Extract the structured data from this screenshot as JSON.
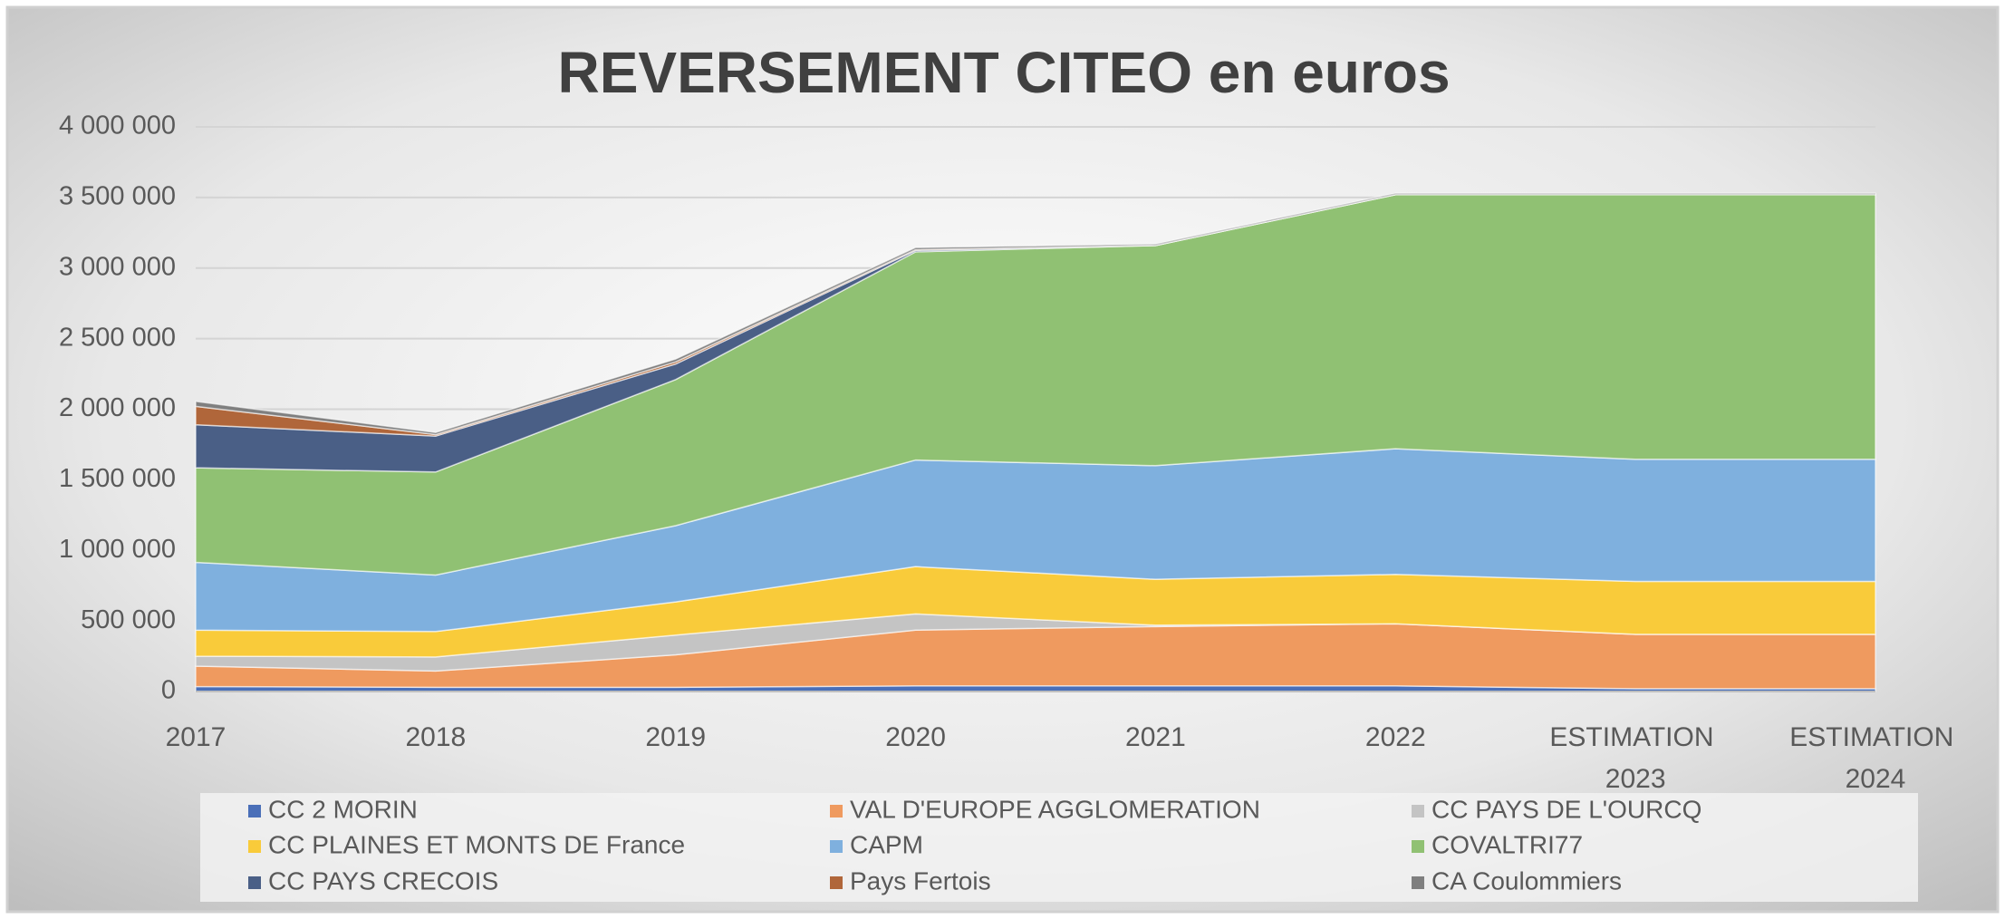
{
  "chart_data": {
    "type": "stacked-area",
    "title": "REVERSEMENT CITEO en euros",
    "categories": [
      "2017",
      "2018",
      "2019",
      "2020",
      "2021",
      "2022",
      "ESTIMATION 2023",
      "ESTIMATION 2024"
    ],
    "ylim": [
      0,
      4000000
    ],
    "yticks": [
      0,
      {
        "value": 500000,
        "label": "500 000"
      },
      {
        "value": 1000000,
        "label": "1 000 000"
      },
      {
        "value": 1500000,
        "label": "1 500 000"
      },
      {
        "value": 2000000,
        "label": "2 000 000"
      },
      {
        "value": 2500000,
        "label": "2 500 000"
      },
      {
        "value": 3000000,
        "label": "3 000 000"
      },
      {
        "value": 3500000,
        "label": "3 500 000"
      },
      {
        "value": 4000000,
        "label": "4 000 000"
      }
    ],
    "grid": true,
    "legend": "bottom",
    "series": [
      {
        "name": "CC 2 MORIN",
        "color": "#4a6fb8",
        "values": [
          35000,
          30000,
          30000,
          40000,
          40000,
          40000,
          20000,
          20000
        ]
      },
      {
        "name": "VAL D'EUROPE AGGLOMERATION",
        "color": "#ef9a5f",
        "values": [
          145000,
          115000,
          230000,
          395000,
          420000,
          440000,
          385000,
          385000
        ]
      },
      {
        "name": "CC PAYS DE L'OURCQ",
        "color": "#c4c4c4",
        "values": [
          70000,
          100000,
          140000,
          115000,
          10000,
          0,
          0,
          0
        ]
      },
      {
        "name": "CC PLAINES ET MONTS DE France",
        "color": "#f9cb3a",
        "values": [
          185000,
          180000,
          235000,
          335000,
          325000,
          350000,
          375000,
          375000
        ]
      },
      {
        "name": "CAPM",
        "color": "#7fb0de",
        "values": [
          480000,
          400000,
          540000,
          755000,
          805000,
          890000,
          865000,
          865000
        ]
      },
      {
        "name": "COVALTRI77",
        "color": "#90c173",
        "values": [
          670000,
          730000,
          1035000,
          1475000,
          1560000,
          1800000,
          1875000,
          1875000
        ]
      },
      {
        "name": "CC PAYS CRECOIS",
        "color": "#4a5f86",
        "values": [
          305000,
          255000,
          110000,
          10000,
          0,
          0,
          0,
          0
        ]
      },
      {
        "name": "Pays Fertois",
        "color": "#b0663a",
        "values": [
          130000,
          10000,
          15000,
          5000,
          0,
          0,
          0,
          0
        ]
      },
      {
        "name": "CA Coulommiers",
        "color": "#7f7f7f",
        "values": [
          35000,
          15000,
          20000,
          15000,
          10000,
          10000,
          10000,
          10000
        ]
      }
    ]
  }
}
